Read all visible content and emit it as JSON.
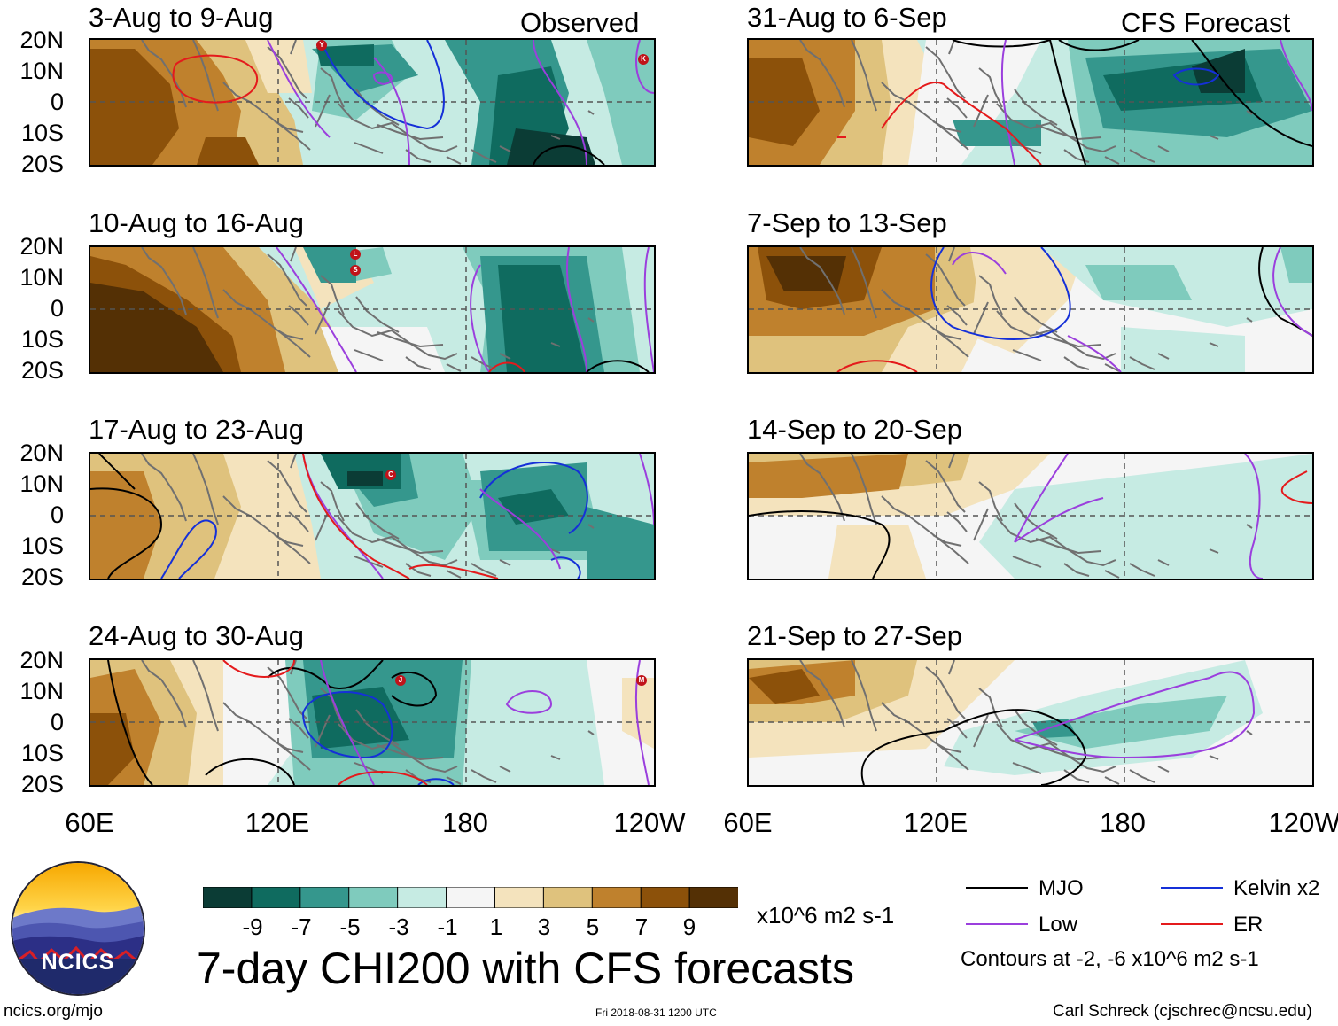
{
  "headers": {
    "observed": "Observed",
    "forecast": "CFS Forecast"
  },
  "panels_observed": [
    {
      "title": "3-Aug to 9-Aug",
      "storms": [
        "Y",
        "K"
      ]
    },
    {
      "title": "10-Aug to 16-Aug",
      "storms": [
        "L",
        "S"
      ]
    },
    {
      "title": "17-Aug to 23-Aug",
      "storms": [
        "C"
      ]
    },
    {
      "title": "24-Aug to 30-Aug",
      "storms": [
        "J",
        "M"
      ]
    }
  ],
  "panels_forecast": [
    {
      "title": "31-Aug to 6-Sep"
    },
    {
      "title": "7-Sep to 13-Sep"
    },
    {
      "title": "14-Sep to 20-Sep"
    },
    {
      "title": "21-Sep to 27-Sep"
    }
  ],
  "lat_labels": [
    "20N",
    "10N",
    "0",
    "10S",
    "20S"
  ],
  "lon_labels": [
    "60E",
    "120E",
    "180",
    "120W"
  ],
  "colorbar": {
    "ticks": [
      "-9",
      "-7",
      "-5",
      "-3",
      "-1",
      "1",
      "3",
      "5",
      "7",
      "9"
    ],
    "units": "x10^6 m2 s-1",
    "colors": [
      "#0b3c35",
      "#0f6b5f",
      "#35978d",
      "#7fcbbd",
      "#c6ebe3",
      "#f5f5f5",
      "#f4e3bd",
      "#dfc27d",
      "#bf812d",
      "#8c510a",
      "#543005"
    ]
  },
  "legend": {
    "mjo": "MJO",
    "kelvin": "Kelvin x2",
    "low": "Low",
    "er": "ER",
    "note": "Contours at -2, -6 x10^6 m2 s-1",
    "colors": {
      "mjo": "#000000",
      "kelvin": "#1530d8",
      "low": "#9b3fdd",
      "er": "#e41a1c"
    }
  },
  "logo_text": "NCICS",
  "main_title": "7-day CHI200 with CFS forecasts",
  "footer": {
    "url": "ncics.org/mjo",
    "timestamp": "Fri 2018-08-31 1200 UTC",
    "credit": "Carl Schreck (cjschrec@ncsu.edu)"
  }
}
